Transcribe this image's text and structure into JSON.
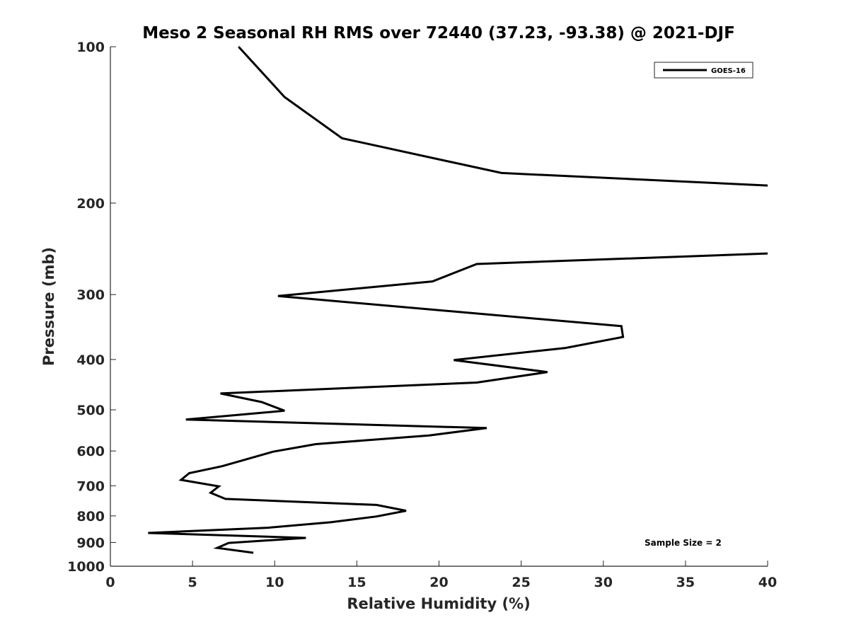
{
  "chart_data": {
    "type": "line",
    "title": "Meso 2 Seasonal RH RMS over 72440 (37.23, -93.38) @ 2021-DJF",
    "xlabel": "Relative Humidity (%)",
    "ylabel": "Pressure (mb)",
    "xlim": [
      0,
      40
    ],
    "ylim": [
      100,
      1000
    ],
    "y_scale": "log",
    "y_reversed": true,
    "grid": false,
    "legend_position": "top-right",
    "x_ticks": [
      0,
      5,
      10,
      15,
      20,
      25,
      30,
      35,
      40
    ],
    "x_tick_labels": [
      "0",
      "5",
      "10",
      "15",
      "20",
      "25",
      "30",
      "35",
      "40"
    ],
    "y_ticks": [
      100,
      200,
      300,
      400,
      500,
      600,
      700,
      800,
      900,
      1000
    ],
    "y_tick_labels": [
      "100",
      "200",
      "300",
      "400",
      "500",
      "600",
      "700",
      "800",
      "900",
      "1000"
    ],
    "annotation": "Sample Size = 2",
    "series": [
      {
        "name": "GOES-16",
        "color": "#000000",
        "points": [
          [
            7.8,
            100
          ],
          [
            10.6,
            125
          ],
          [
            14.1,
            150
          ],
          [
            23.8,
            175
          ],
          [
            40,
            185
          ],
          [
            null,
            null
          ],
          [
            40,
            250
          ],
          [
            22.3,
            262
          ],
          [
            19.6,
            283
          ],
          [
            10.2,
            302
          ],
          [
            31.1,
            345
          ],
          [
            31.2,
            362
          ],
          [
            27.7,
            380
          ],
          [
            20.9,
            401
          ],
          [
            26.6,
            423
          ],
          [
            22.3,
            443
          ],
          [
            6.7,
            465
          ],
          [
            9.2,
            483
          ],
          [
            10.6,
            502
          ],
          [
            4.6,
            522
          ],
          [
            22.9,
            542
          ],
          [
            19.4,
            560
          ],
          [
            12.5,
            582
          ],
          [
            9.9,
            602
          ],
          [
            6.8,
            642
          ],
          [
            4.8,
            662
          ],
          [
            4.3,
            682
          ],
          [
            6.6,
            702
          ],
          [
            6.1,
            722
          ],
          [
            7.0,
            742
          ],
          [
            16.2,
            762
          ],
          [
            18.0,
            782
          ],
          [
            16.2,
            802
          ],
          [
            13.4,
            823
          ],
          [
            9.6,
            843
          ],
          [
            2.3,
            863
          ],
          [
            11.9,
            882
          ],
          [
            7.2,
            902
          ],
          [
            6.5,
            922
          ],
          [
            8.7,
            942
          ]
        ]
      }
    ]
  }
}
